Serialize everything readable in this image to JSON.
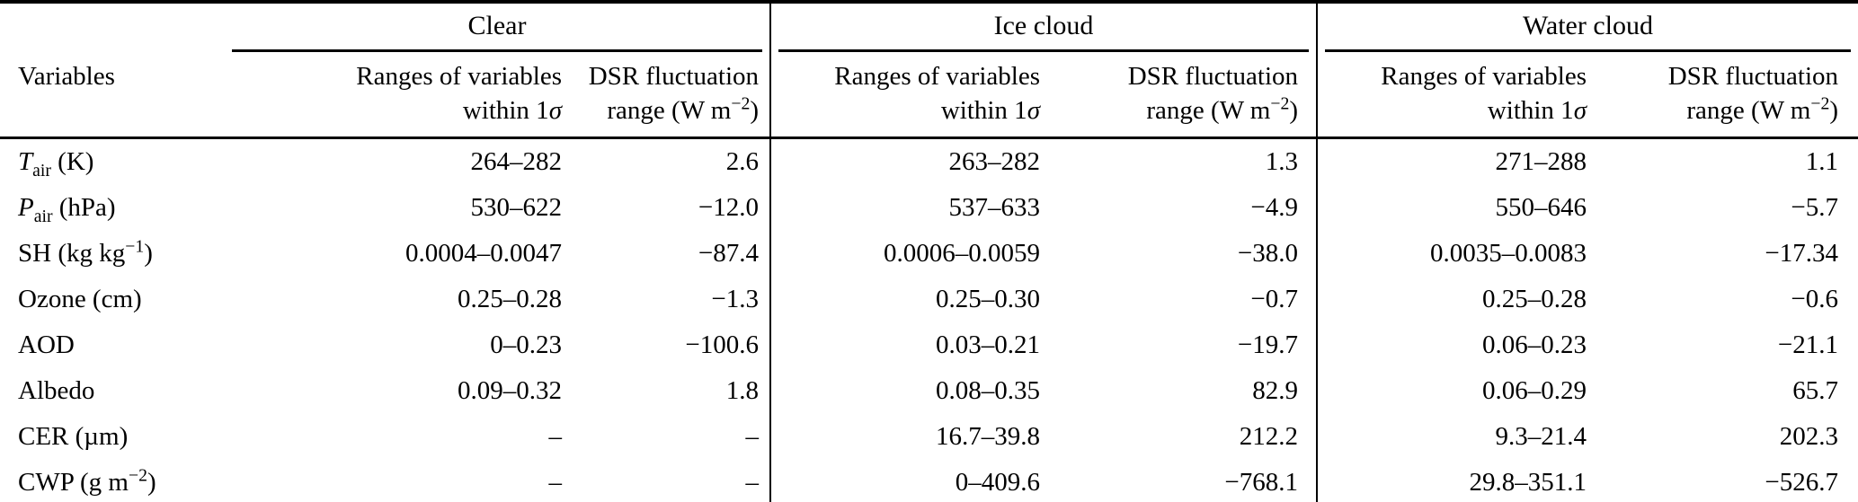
{
  "header": {
    "variables_label": "Variables",
    "groups": [
      {
        "label": "Clear"
      },
      {
        "label": "Ice cloud"
      },
      {
        "label": "Water cloud"
      }
    ],
    "sub": {
      "range_line1": "Ranges of variables",
      "range_line2": "within 1*σ*",
      "dsr_line1": "DSR fluctuation",
      "dsr_line2": "range (W m^{−2})"
    }
  },
  "rows": [
    {
      "variable": "*T*_{air} (K)",
      "clear_range": "264–282",
      "clear_dsr": "2.6",
      "ice_range": "263–282",
      "ice_dsr": "1.3",
      "water_range": "271–288",
      "water_dsr": "1.1"
    },
    {
      "variable": "*P*_{air} (hPa)",
      "clear_range": "530–622",
      "clear_dsr": "−12.0",
      "ice_range": "537–633",
      "ice_dsr": "−4.9",
      "water_range": "550–646",
      "water_dsr": "−5.7"
    },
    {
      "variable": "SH (kg kg^{−1})",
      "clear_range": "0.0004–0.0047",
      "clear_dsr": "−87.4",
      "ice_range": "0.0006–0.0059",
      "ice_dsr": "−38.0",
      "water_range": "0.0035–0.0083",
      "water_dsr": "−17.34"
    },
    {
      "variable": "Ozone (cm)",
      "clear_range": "0.25–0.28",
      "clear_dsr": "−1.3",
      "ice_range": "0.25–0.30",
      "ice_dsr": "−0.7",
      "water_range": "0.25–0.28",
      "water_dsr": "−0.6"
    },
    {
      "variable": "AOD",
      "clear_range": "0–0.23",
      "clear_dsr": "−100.6",
      "ice_range": "0.03–0.21",
      "ice_dsr": "−19.7",
      "water_range": "0.06–0.23",
      "water_dsr": "−21.1"
    },
    {
      "variable": "Albedo",
      "clear_range": "0.09–0.32",
      "clear_dsr": "1.8",
      "ice_range": "0.08–0.35",
      "ice_dsr": "82.9",
      "water_range": "0.06–0.29",
      "water_dsr": "65.7"
    },
    {
      "variable": "CER (µm)",
      "clear_range": "–",
      "clear_dsr": "–",
      "ice_range": "16.7–39.8",
      "ice_dsr": "212.2",
      "water_range": "9.3–21.4",
      "water_dsr": "202.3"
    },
    {
      "variable": "CWP (g m^{−2})",
      "clear_range": "–",
      "clear_dsr": "–",
      "ice_range": "0–409.6",
      "ice_dsr": "−768.1",
      "water_range": "29.8–351.1",
      "water_dsr": "−526.7"
    }
  ]
}
